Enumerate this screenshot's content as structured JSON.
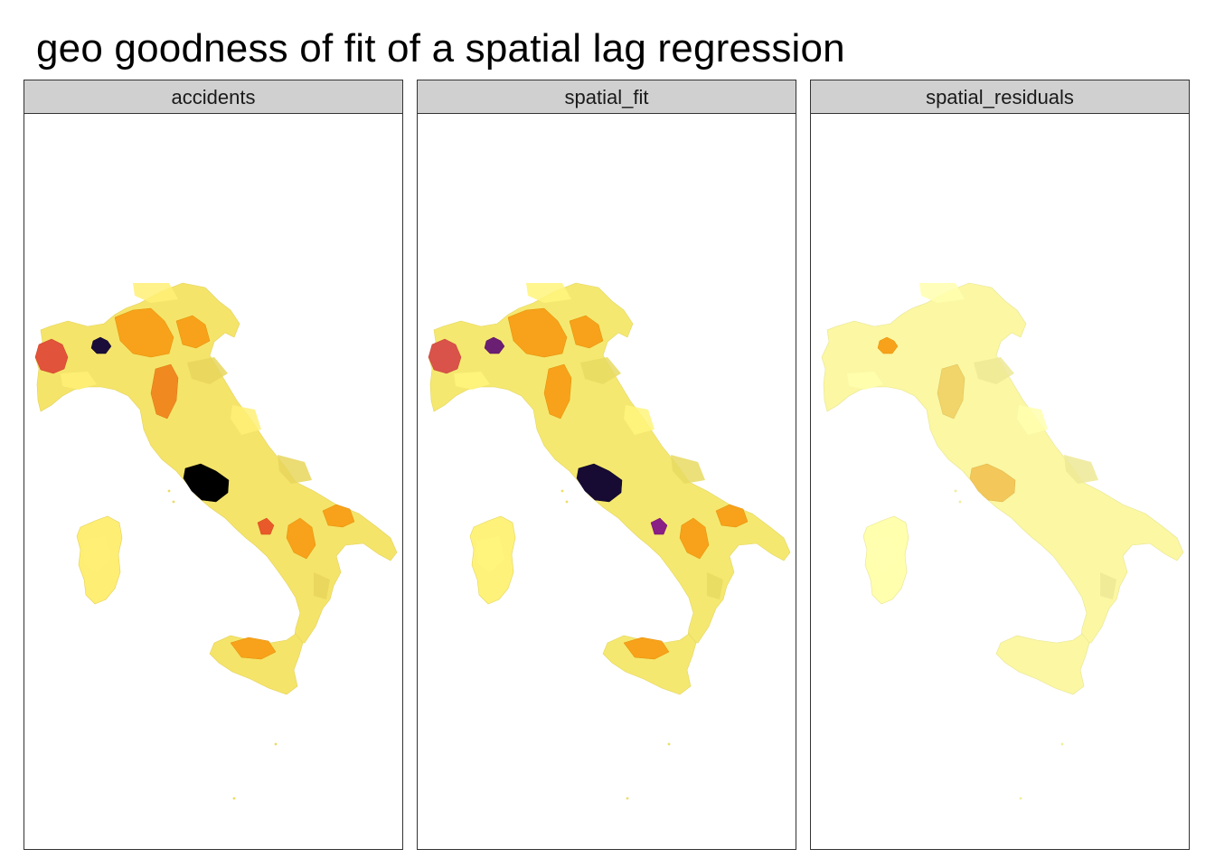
{
  "title": "geo goodness of fit of a spatial lag regression",
  "facets": [
    {
      "id": "accidents",
      "label": "accidents",
      "base_color": "#f5e46a",
      "highlights": [
        {
          "region": "north-west-1",
          "level": "high",
          "color": "#e1533a"
        },
        {
          "region": "north-west-2",
          "level": "max",
          "color": "#1a0d3a"
        },
        {
          "region": "north-center",
          "level": "mid",
          "color": "#f7a21a"
        },
        {
          "region": "north-east",
          "level": "mid",
          "color": "#f7a21a"
        },
        {
          "region": "center-1",
          "level": "mid",
          "color": "#f08a20"
        },
        {
          "region": "center-west",
          "level": "max",
          "color": "#000000"
        },
        {
          "region": "south-west",
          "level": "high",
          "color": "#e85a2a"
        },
        {
          "region": "south-center",
          "level": "mid",
          "color": "#f7a21a"
        },
        {
          "region": "south-east",
          "level": "mid",
          "color": "#f7a21a"
        },
        {
          "region": "islands-south",
          "level": "mid",
          "color": "#f7a21a"
        }
      ]
    },
    {
      "id": "spatial_fit",
      "label": "spatial_fit",
      "base_color": "#f5e870",
      "highlights": [
        {
          "region": "north-west-1",
          "level": "high",
          "color": "#d9534a"
        },
        {
          "region": "north-west-2",
          "level": "high",
          "color": "#6b1f73"
        },
        {
          "region": "north-center",
          "level": "mid",
          "color": "#f7a21a"
        },
        {
          "region": "north-east",
          "level": "mid",
          "color": "#f7a21a"
        },
        {
          "region": "center-1",
          "level": "mid",
          "color": "#f7a21a"
        },
        {
          "region": "center-west",
          "level": "max",
          "color": "#170a33"
        },
        {
          "region": "south-west",
          "level": "high",
          "color": "#8a1f86"
        },
        {
          "region": "south-center",
          "level": "mid",
          "color": "#f7a21a"
        },
        {
          "region": "south-east",
          "level": "mid",
          "color": "#f7a21a"
        },
        {
          "region": "islands-south",
          "level": "mid",
          "color": "#f7a21a"
        }
      ]
    },
    {
      "id": "spatial_residuals",
      "label": "spatial_residuals",
      "base_color": "#fbf7a3",
      "highlights": [
        {
          "region": "north-west-2",
          "level": "mid",
          "color": "#f7a21a"
        },
        {
          "region": "center-1",
          "level": "low",
          "color": "#f1d46a"
        },
        {
          "region": "center-west",
          "level": "low",
          "color": "#f3c75a"
        }
      ]
    }
  ]
}
